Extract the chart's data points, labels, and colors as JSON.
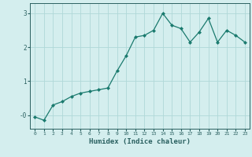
{
  "x": [
    0,
    1,
    2,
    3,
    4,
    5,
    6,
    7,
    8,
    9,
    10,
    11,
    12,
    13,
    14,
    15,
    16,
    17,
    18,
    19,
    20,
    21,
    22,
    23
  ],
  "y": [
    -0.05,
    -0.15,
    0.3,
    0.4,
    0.55,
    0.65,
    0.7,
    0.75,
    0.8,
    1.3,
    1.75,
    2.3,
    2.35,
    2.5,
    3.0,
    2.65,
    2.55,
    2.15,
    2.45,
    2.85,
    2.15,
    2.5,
    2.35,
    2.15
  ],
  "line_color": "#1a7a6e",
  "marker": "D",
  "markersize": 2.0,
  "linewidth": 0.9,
  "background_color": "#d4eeee",
  "grid_color": "#b0d8d8",
  "xlabel": "Humidex (Indice chaleur)",
  "xlabel_fontsize": 6.5,
  "tick_label_color": "#2a6060",
  "yticks": [
    0,
    1,
    2,
    3
  ],
  "ylim": [
    -0.4,
    3.3
  ],
  "xlim": [
    -0.5,
    23.5
  ],
  "xticks": [
    0,
    1,
    2,
    3,
    4,
    5,
    6,
    7,
    8,
    9,
    10,
    11,
    12,
    13,
    14,
    15,
    16,
    17,
    18,
    19,
    20,
    21,
    22,
    23
  ],
  "ytick_labels": [
    "-0",
    "1",
    "2",
    "3"
  ]
}
